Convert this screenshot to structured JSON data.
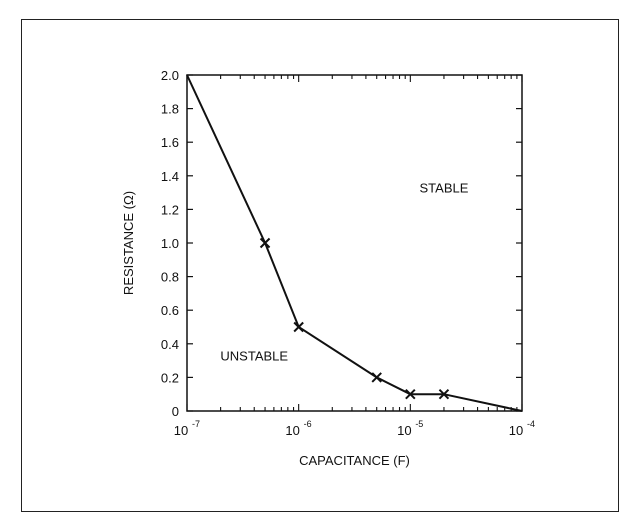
{
  "chart_data": {
    "type": "line",
    "title": "",
    "xlabel": "CAPACITANCE (F)",
    "ylabel": "RESISTANCE (Ω)",
    "xscale": "log",
    "xlim": [
      1e-07,
      0.0001
    ],
    "ylim": [
      0,
      2.0
    ],
    "grid": false,
    "x_ticks": [
      {
        "value": 1e-07,
        "base": "10",
        "exp": "-7"
      },
      {
        "value": 1e-06,
        "base": "10",
        "exp": "-6"
      },
      {
        "value": 1e-05,
        "base": "10",
        "exp": "-5"
      },
      {
        "value": 0.0001,
        "base": "10",
        "exp": "-4"
      }
    ],
    "y_ticks": [
      {
        "value": 0,
        "label": "0"
      },
      {
        "value": 0.2,
        "label": "0.2"
      },
      {
        "value": 0.4,
        "label": "0.4"
      },
      {
        "value": 0.6,
        "label": "0.6"
      },
      {
        "value": 0.8,
        "label": "0.8"
      },
      {
        "value": 1.0,
        "label": "1.0"
      },
      {
        "value": 1.2,
        "label": "1.2"
      },
      {
        "value": 1.4,
        "label": "1.4"
      },
      {
        "value": 1.6,
        "label": "1.6"
      },
      {
        "value": 1.8,
        "label": "1.8"
      },
      {
        "value": 2.0,
        "label": "2.0"
      }
    ],
    "series": [
      {
        "x": [
          1e-07,
          5e-07,
          1e-06,
          5e-06,
          1e-05,
          2e-05,
          0.0001
        ],
        "y": [
          2.0,
          1.0,
          0.5,
          0.2,
          0.1,
          0.1,
          0.0
        ],
        "markers": [
          false,
          true,
          true,
          true,
          true,
          true,
          false
        ]
      }
    ],
    "annotations": [
      {
        "text": "STABLE",
        "x": 2e-05,
        "y": 1.3
      },
      {
        "text": "UNSTABLE",
        "x": 4e-07,
        "y": 0.3
      }
    ]
  }
}
